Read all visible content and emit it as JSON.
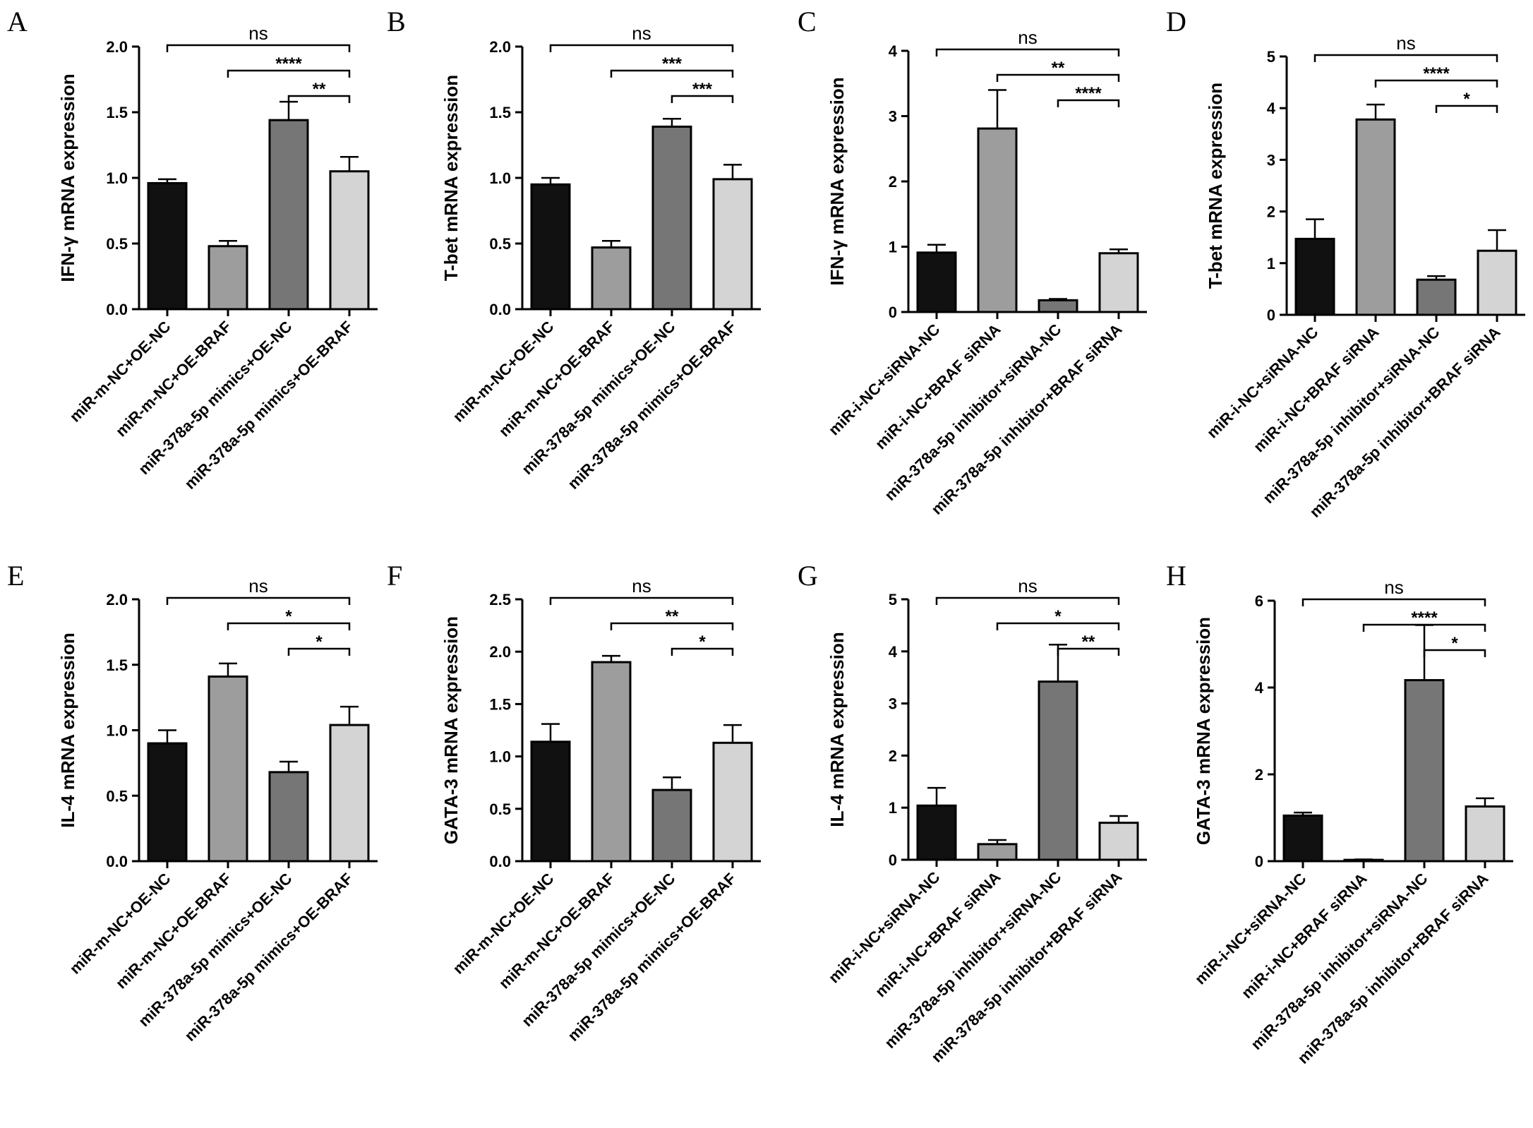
{
  "figure": {
    "title": ""
  },
  "colors": {
    "bar_fills": [
      "#111111",
      "#9d9d9d",
      "#767676",
      "#d4d4d4"
    ],
    "stroke": "#000000"
  },
  "chart_data": [
    {
      "panel": "A",
      "type": "bar",
      "ylabel": "IFN-γ mRNA expression",
      "ylim": [
        0,
        2.0
      ],
      "yticks": [
        "0.0",
        "0.5",
        "1.0",
        "1.5",
        "2.0"
      ],
      "categories": [
        "miR-m-NC+OE-NC",
        "miR-m-NC+OE-BRAF",
        "miR-378a-5p mimics+OE-NC",
        "miR-378a-5p mimics+OE-BRAF"
      ],
      "values": [
        0.96,
        0.48,
        1.44,
        1.05
      ],
      "errors": [
        0.03,
        0.04,
        0.14,
        0.11
      ],
      "comparisons": [
        {
          "from": 0,
          "to": 3,
          "label": "ns"
        },
        {
          "from": 1,
          "to": 3,
          "label": "****"
        },
        {
          "from": 2,
          "to": 3,
          "label": "**"
        }
      ]
    },
    {
      "panel": "B",
      "type": "bar",
      "ylabel": "T-bet mRNA expression",
      "ylim": [
        0,
        2.0
      ],
      "yticks": [
        "0.0",
        "0.5",
        "1.0",
        "1.5",
        "2.0"
      ],
      "categories": [
        "miR-m-NC+OE-NC",
        "miR-m-NC+OE-BRAF",
        "miR-378a-5p mimics+OE-NC",
        "miR-378a-5p mimics+OE-BRAF"
      ],
      "values": [
        0.95,
        0.47,
        1.39,
        0.99
      ],
      "errors": [
        0.05,
        0.05,
        0.06,
        0.11
      ],
      "comparisons": [
        {
          "from": 0,
          "to": 3,
          "label": "ns"
        },
        {
          "from": 1,
          "to": 3,
          "label": "***"
        },
        {
          "from": 2,
          "to": 3,
          "label": "***"
        }
      ]
    },
    {
      "panel": "C",
      "type": "bar",
      "ylabel": "IFN-γ mRNA expression",
      "ylim": [
        0,
        4
      ],
      "yticks": [
        "0",
        "1",
        "2",
        "3",
        "4"
      ],
      "categories": [
        "miR-i-NC+siRNA-NC",
        "miR-i-NC+BRAF siRNA",
        "miR-378a-5p inhibitor+siRNA-NC",
        "miR-378a-5p inhibitor+BRAF siRNA"
      ],
      "values": [
        0.91,
        2.81,
        0.18,
        0.9
      ],
      "errors": [
        0.12,
        0.59,
        0.02,
        0.06
      ],
      "comparisons": [
        {
          "from": 0,
          "to": 3,
          "label": "ns"
        },
        {
          "from": 1,
          "to": 3,
          "label": "**"
        },
        {
          "from": 2,
          "to": 3,
          "label": "****"
        }
      ]
    },
    {
      "panel": "D",
      "type": "bar",
      "ylabel": "T-bet mRNA expression",
      "ylim": [
        0,
        5
      ],
      "yticks": [
        "0",
        "1",
        "2",
        "3",
        "4",
        "5"
      ],
      "categories": [
        "miR-i-NC+siRNA-NC",
        "miR-i-NC+BRAF siRNA",
        "miR-378a-5p inhibitor+siRNA-NC",
        "miR-378a-5p inhibitor+BRAF siRNA"
      ],
      "values": [
        1.47,
        3.78,
        0.68,
        1.24
      ],
      "errors": [
        0.38,
        0.29,
        0.07,
        0.4
      ],
      "comparisons": [
        {
          "from": 0,
          "to": 3,
          "label": "ns"
        },
        {
          "from": 1,
          "to": 3,
          "label": "****"
        },
        {
          "from": 2,
          "to": 3,
          "label": "*"
        }
      ]
    },
    {
      "panel": "E",
      "type": "bar",
      "ylabel": "IL-4  mRNA expression",
      "ylim": [
        0,
        2.0
      ],
      "yticks": [
        "0.0",
        "0.5",
        "1.0",
        "1.5",
        "2.0"
      ],
      "categories": [
        "miR-m-NC+OE-NC",
        "miR-m-NC+OE-BRAF",
        "miR-378a-5p mimics+OE-NC",
        "miR-378a-5p mimics+OE-BRAF"
      ],
      "values": [
        0.9,
        1.41,
        0.68,
        1.04
      ],
      "errors": [
        0.1,
        0.1,
        0.08,
        0.14
      ],
      "comparisons": [
        {
          "from": 0,
          "to": 3,
          "label": "ns"
        },
        {
          "from": 1,
          "to": 3,
          "label": "*"
        },
        {
          "from": 2,
          "to": 3,
          "label": "*"
        }
      ]
    },
    {
      "panel": "F",
      "type": "bar",
      "ylabel": "GATA-3 mRNA expression",
      "ylim": [
        0,
        2.5
      ],
      "yticks": [
        "0.0",
        "0.5",
        "1.0",
        "1.5",
        "2.0",
        "2.5"
      ],
      "categories": [
        "miR-m-NC+OE-NC",
        "miR-m-NC+OE-BRAF",
        "miR-378a-5p mimics+OE-NC",
        "miR-378a-5p mimics+OE-BRAF"
      ],
      "values": [
        1.14,
        1.9,
        0.68,
        1.13
      ],
      "errors": [
        0.17,
        0.06,
        0.12,
        0.17
      ],
      "comparisons": [
        {
          "from": 0,
          "to": 3,
          "label": "ns"
        },
        {
          "from": 1,
          "to": 3,
          "label": "**"
        },
        {
          "from": 2,
          "to": 3,
          "label": "*"
        }
      ]
    },
    {
      "panel": "G",
      "type": "bar",
      "ylabel": "IL-4  mRNA expression",
      "ylim": [
        0,
        5
      ],
      "yticks": [
        "0",
        "1",
        "2",
        "3",
        "4",
        "5"
      ],
      "categories": [
        "miR-i-NC+siRNA-NC",
        "miR-i-NC+BRAF siRNA",
        "miR-378a-5p inhibitor+siRNA-NC",
        "miR-378a-5p inhibitor+BRAF siRNA"
      ],
      "values": [
        1.04,
        0.3,
        3.42,
        0.71
      ],
      "errors": [
        0.34,
        0.08,
        0.71,
        0.13
      ],
      "comparisons": [
        {
          "from": 0,
          "to": 3,
          "label": "ns"
        },
        {
          "from": 1,
          "to": 3,
          "label": "*"
        },
        {
          "from": 2,
          "to": 3,
          "label": "**"
        }
      ]
    },
    {
      "panel": "H",
      "type": "bar",
      "ylabel": "GATA-3 mRNA expression",
      "ylim": [
        0,
        6
      ],
      "yticks": [
        "0",
        "2",
        "4",
        "6"
      ],
      "categories": [
        "miR-i-NC+siRNA-NC",
        "miR-i-NC+BRAF siRNA",
        "miR-378a-5p inhibitor+siRNA-NC",
        "miR-378a-5p inhibitor+BRAF siRNA"
      ],
      "values": [
        1.05,
        0.03,
        4.17,
        1.26
      ],
      "errors": [
        0.07,
        0.01,
        1.27,
        0.19
      ],
      "comparisons": [
        {
          "from": 0,
          "to": 3,
          "label": "ns"
        },
        {
          "from": 1,
          "to": 3,
          "label": "****"
        },
        {
          "from": 2,
          "to": 3,
          "label": "*"
        }
      ]
    }
  ]
}
